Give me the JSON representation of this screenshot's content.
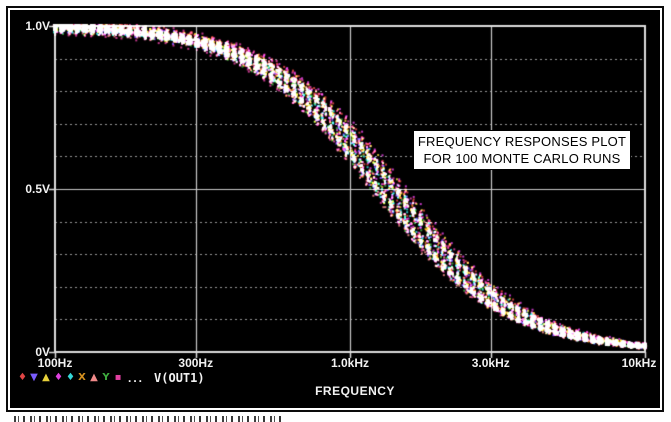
{
  "window": {
    "page_background": "#ffffff",
    "screen_background": "#000000"
  },
  "annotation": {
    "line1": "FREQUENCY RESPONSES PLOT",
    "line2": "FOR 100 MONTE CARLO RUNS"
  },
  "axis_x": {
    "title": "FREQUENCY",
    "scale": "log",
    "ticks": [
      {
        "label": "100Hz",
        "hz": 100
      },
      {
        "label": "300Hz",
        "hz": 300
      },
      {
        "label": "1.0kHz",
        "hz": 1000
      },
      {
        "label": "3.0kHz",
        "hz": 3000
      },
      {
        "label": "10kHz",
        "hz": 10000
      }
    ]
  },
  "axis_y": {
    "ticks": [
      {
        "label": "1.0V",
        "v": 1.0
      },
      {
        "label": "0.5V",
        "v": 0.5
      },
      {
        "label": "0V",
        "v": 0.0
      }
    ],
    "minor_step_v": 0.1
  },
  "legend": {
    "symbols": [
      {
        "shape": "diamond",
        "glyph": "♦",
        "color": "#e04545"
      },
      {
        "shape": "triangle-down",
        "glyph": "▼",
        "color": "#7a5cff"
      },
      {
        "shape": "triangle-up",
        "glyph": "▲",
        "color": "#e8d13a"
      },
      {
        "shape": "diamond",
        "glyph": "♦",
        "color": "#e041e0"
      },
      {
        "shape": "diamond",
        "glyph": "♦",
        "color": "#35d8d8"
      },
      {
        "shape": "x-cross",
        "glyph": "X",
        "color": "#d8921f"
      },
      {
        "shape": "triangle-up",
        "glyph": "▲",
        "color": "#f08a8a"
      },
      {
        "shape": "y-shape",
        "glyph": "Y",
        "color": "#3fae3f"
      },
      {
        "shape": "square-dot",
        "glyph": "▪",
        "color": "#e03fa0"
      }
    ],
    "ellipsis": "...",
    "trace": "V(OUT1)"
  },
  "chart_data": {
    "type": "line",
    "title": "FREQUENCY RESPONSES PLOT FOR 100 MONTE CARLO RUNS",
    "xlabel": "FREQUENCY",
    "ylabel": "V(OUT1)",
    "x_scale": "log",
    "xlim_hz": [
      100,
      10000
    ],
    "ylim_v": [
      0,
      1
    ],
    "x_ticks": [
      "100Hz",
      "300Hz",
      "1.0kHz",
      "3.0kHz",
      "10kHz"
    ],
    "y_ticks": [
      "0V",
      "0.5V",
      "1.0V"
    ],
    "y_minor_gridlines_v": [
      0.1,
      0.2,
      0.3,
      0.4,
      0.6,
      0.7,
      0.8,
      0.9
    ],
    "grid": "solid lines at labeled ticks, dotted lines at 0.1V minors",
    "legend_position": "bottom-left",
    "trace": "V(OUT1)",
    "monte_carlo_runs": 100,
    "nominal_response": {
      "f_hz": [
        100,
        150,
        200,
        300,
        500,
        700,
        1000,
        1500,
        2000,
        3000,
        5000,
        7000,
        10000
      ],
      "v": [
        0.994,
        0.988,
        0.978,
        0.952,
        0.878,
        0.786,
        0.643,
        0.444,
        0.31,
        0.166,
        0.067,
        0.035,
        0.018
      ]
    },
    "band_model": {
      "formula": "v = g / (1 + (f/fc)^2)",
      "fc_clusters_hz": [
        1250,
        1430
      ],
      "fc_sigma_fraction": 0.03,
      "gain_sigma_fraction": 0.008,
      "points_per_run": 80
    },
    "run_colors": [
      "#e04545",
      "#7a5cff",
      "#e8d13a",
      "#e041e0",
      "#35d8d8",
      "#d8921f",
      "#f08a8a",
      "#3fae3f",
      "#e03fa0"
    ],
    "gridline_colors": {
      "solid": "#c9c9c9",
      "dotted": "#9a9a9a",
      "box": "#dedede"
    }
  }
}
